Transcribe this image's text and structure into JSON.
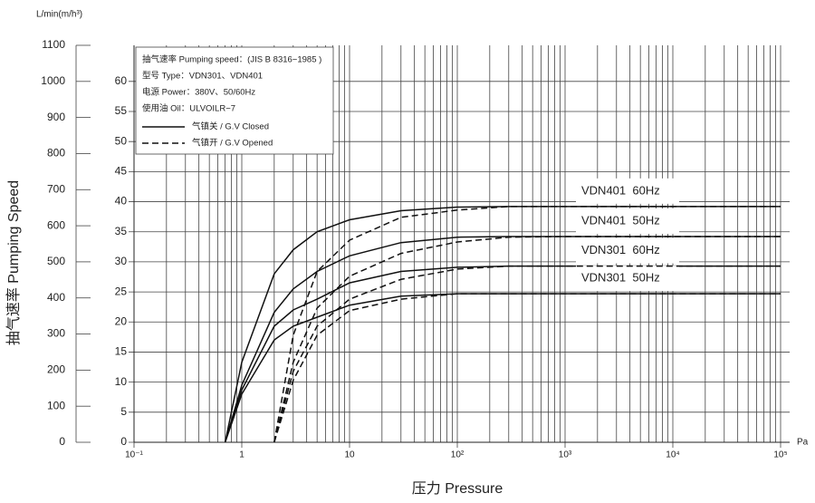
{
  "chart_data": {
    "type": "line",
    "x_log": true,
    "y2_title": "L/min(m/h³)",
    "y_title": "抽气速率 Pumping Speed",
    "x_title": "压力 Pressure",
    "x_unit": "Pa",
    "xlim": [
      0.1,
      100000
    ],
    "xticks": [
      {
        "value": 0.1,
        "label": "10⁻¹"
      },
      1,
      10,
      {
        "value": 100,
        "label": "10²"
      },
      {
        "value": 1000,
        "label": "10³"
      },
      {
        "value": 10000,
        "label": "10⁴"
      },
      {
        "value": 100000,
        "label": "10⁵"
      }
    ],
    "xminor_grid": [
      0.2,
      0.3,
      0.4,
      0.5,
      0.6,
      0.7,
      0.8,
      0.9,
      2,
      3,
      4,
      5,
      6,
      7,
      8,
      9,
      20,
      30,
      40,
      50,
      60,
      70,
      80,
      90,
      200,
      300,
      400,
      500,
      600,
      700,
      800,
      900,
      2000,
      3000,
      4000,
      5000,
      6000,
      7000,
      8000,
      9000,
      20000,
      30000,
      40000,
      50000,
      60000,
      70000,
      80000,
      90000
    ],
    "ylim": [
      0,
      66
    ],
    "yticks": [
      0,
      5,
      10,
      15,
      20,
      25,
      30,
      35,
      40,
      45,
      50,
      55,
      60
    ],
    "y2lim": [
      0,
      1100
    ],
    "y2ticks": [
      0,
      100,
      200,
      300,
      400,
      500,
      600,
      700,
      800,
      900,
      1000,
      1100
    ],
    "grid": true,
    "color": "#111111",
    "legend": {
      "corner": "top-left",
      "lines": [
        "抽气速率 Pumping speed：(JIS B 8316−1985 )",
        "型号 Type：VDN301、VDN401",
        "电源 Power：380V、50/60Hz",
        "使用油 Oil：ULVOILR−7"
      ],
      "items": [
        {
          "label": "气镇关 / G.V Closed",
          "style": "solid"
        },
        {
          "label": "气镇开 / G.V Opened",
          "style": "dashed"
        }
      ]
    },
    "x": [
      0.7,
      1,
      2,
      3,
      5,
      10,
      30,
      100,
      300,
      1000,
      100000
    ],
    "series": [
      {
        "name": "VDN401  60Hz",
        "style": "solid",
        "values": [
          0,
          13.3,
          28,
          32,
          35,
          37,
          38.5,
          39.1,
          39.2,
          39.2,
          39.2
        ]
      },
      {
        "name": "VDN401  50Hz",
        "style": "solid",
        "values": [
          0,
          9.5,
          21.6,
          25.5,
          28.4,
          31,
          33.2,
          34.1,
          34.2,
          34.2,
          34.2
        ]
      },
      {
        "name": "VDN301  60Hz",
        "style": "solid",
        "values": [
          0,
          8.7,
          19.3,
          22,
          23.8,
          26.5,
          28.4,
          29.1,
          29.3,
          29.3,
          29.3
        ]
      },
      {
        "name": "VDN301  50Hz",
        "style": "solid",
        "values": [
          0,
          8,
          17,
          19.3,
          20.8,
          22.8,
          24.3,
          24.7,
          24.7,
          24.7,
          24.7
        ]
      },
      {
        "style": "dashed",
        "values": [
          null,
          null,
          0,
          17.8,
          28.4,
          33.6,
          37.4,
          38.6,
          39.2,
          39.2,
          39.2
        ]
      },
      {
        "style": "dashed",
        "values": [
          null,
          null,
          0,
          13.3,
          22.3,
          27.6,
          31.4,
          33.3,
          34.1,
          34.2,
          34.2
        ]
      },
      {
        "style": "dashed",
        "values": [
          null,
          null,
          0,
          11.8,
          19.3,
          23.8,
          27.1,
          28.8,
          29.3,
          29.3,
          29.3
        ]
      },
      {
        "style": "dashed",
        "values": [
          null,
          null,
          0,
          10.3,
          17.8,
          21.9,
          23.8,
          24.7,
          24.7,
          24.7,
          24.7
        ]
      }
    ]
  }
}
